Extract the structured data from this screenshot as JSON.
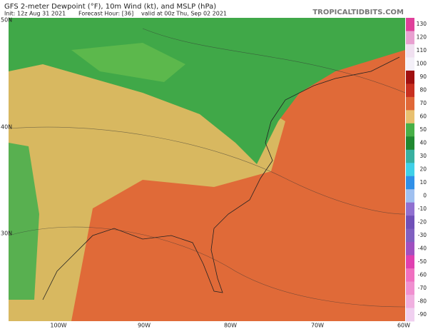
{
  "header": {
    "title": "GFS 2-meter Dewpoint (°F), 10m Wind (kt), and MSLP (hPa)",
    "init": "Init: 12z Aug 31 2021",
    "forecast_hour": "Forecast Hour: [36]",
    "valid": "valid at 00z Thu, Sep 02 2021",
    "site": "TROPICALTIDBITS.COM"
  },
  "map": {
    "lat_labels": [
      "50N",
      "40N",
      "30N"
    ],
    "lon_labels": [
      "100W",
      "90W",
      "80W",
      "70W",
      "60W"
    ]
  },
  "colorbar": {
    "labels": [
      130,
      120,
      110,
      100,
      90,
      80,
      70,
      60,
      50,
      40,
      30,
      20,
      10,
      0,
      -10,
      -20,
      -30,
      -40,
      -50,
      -60,
      -70,
      -80,
      -90
    ],
    "colors": [
      "#e0409a",
      "#e8a0d0",
      "#f0e0f0",
      "#f4f0f8",
      "#a01010",
      "#c83020",
      "#e06838",
      "#e8c070",
      "#48b048",
      "#208830",
      "#38b0a0",
      "#40d0e8",
      "#3090e8",
      "#a0c0f0",
      "#9070d0",
      "#7050b8",
      "#8060c0",
      "#a050c0",
      "#e040b0",
      "#f070c0",
      "#f090d0",
      "#f0b0e0",
      "#f0d0f0"
    ]
  }
}
